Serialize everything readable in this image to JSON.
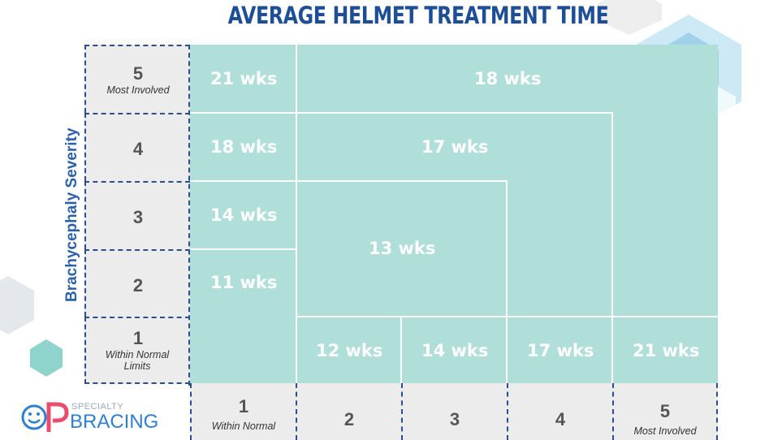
{
  "colors": {
    "title": "#1e4f96",
    "axis_label": "#2b60ab",
    "cell": "#b0ded9",
    "header_bg": "#ececec",
    "border": "#2c4e8c",
    "logo": "#2f7fd0"
  },
  "chart_data": {
    "type": "table",
    "title": "AVERAGE HELMET TREATMENT TIME",
    "ylabel": "Brachycephaly Severity",
    "xlabel": "",
    "rows": [
      {
        "level": "5",
        "note": "Most Involved"
      },
      {
        "level": "4",
        "note": ""
      },
      {
        "level": "3",
        "note": ""
      },
      {
        "level": "2",
        "note": ""
      },
      {
        "level": "1",
        "note": "Within Normal Limits"
      }
    ],
    "columns": [
      {
        "level": "1",
        "note": "Within Normal"
      },
      {
        "level": "2",
        "note": ""
      },
      {
        "level": "3",
        "note": ""
      },
      {
        "level": "4",
        "note": ""
      },
      {
        "level": "5",
        "note": "Most Involved"
      }
    ],
    "cells": [
      {
        "label": "21 wks",
        "brachy_level": 5,
        "plagio_level": 1
      },
      {
        "label": "18 wks",
        "brachy_level": 5,
        "plagio_levels": "2-5"
      },
      {
        "label": "18 wks",
        "brachy_level": 4,
        "plagio_level": 1
      },
      {
        "label": "17 wks",
        "brachy_levels": "2-4",
        "plagio_levels": "2-4"
      },
      {
        "label": "14 wks",
        "brachy_level": 3,
        "plagio_level": 1
      },
      {
        "label": "13 wks",
        "brachy_levels": "2-3",
        "plagio_levels": "2-3"
      },
      {
        "label": "11 wks",
        "brachy_level": 2,
        "plagio_level": 1
      },
      {
        "label": "12 wks",
        "brachy_level": 1,
        "plagio_level": 2
      },
      {
        "label": "14 wks",
        "brachy_level": 1,
        "plagio_level": 3
      },
      {
        "label": "17 wks",
        "brachy_level": 1,
        "plagio_level": 4
      },
      {
        "label": "21 wks",
        "brachy_level": 1,
        "plagio_level": 5
      }
    ]
  },
  "logo": {
    "small": "SPECIALTY",
    "big": "BRACING"
  }
}
